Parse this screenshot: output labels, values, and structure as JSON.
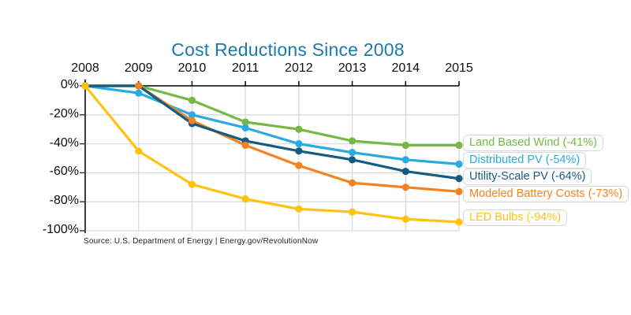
{
  "chart_data": {
    "type": "line",
    "title": "Cost Reductions Since 2008",
    "categories": [
      "2008",
      "2009",
      "2010",
      "2011",
      "2012",
      "2013",
      "2014",
      "2015"
    ],
    "y_tick_labels": [
      "0%",
      "-20%",
      "-40%",
      "-60%",
      "-80%",
      "-100%"
    ],
    "y_tick_values": [
      0,
      -20,
      -40,
      -60,
      -80,
      -100
    ],
    "ylim": [
      -100,
      0
    ],
    "grid": true,
    "legend_position": "right",
    "x_axis_position": "top",
    "series": [
      {
        "name": "Land Based Wind",
        "legend_label": "Land Based Wind (-41%)",
        "color": "#76B843",
        "values": [
          0,
          0,
          -10,
          -25,
          -30,
          -38,
          -41,
          -41
        ]
      },
      {
        "name": "Distributed PV",
        "legend_label": "Distributed PV (-54%)",
        "color": "#29ABE2",
        "values": [
          0,
          -5,
          -20,
          -29,
          -40,
          -46,
          -51,
          -54
        ]
      },
      {
        "name": "Utility-Scale PV",
        "legend_label": "Utility-Scale PV (-64%)",
        "color": "#155C80",
        "values": [
          0,
          0,
          -26,
          -38,
          -45,
          -51,
          -59,
          -64
        ]
      },
      {
        "name": "Modeled Battery Costs",
        "legend_label": "Modeled Battery Costs (-73%)",
        "color": "#F58220",
        "values": [
          0,
          0,
          -24,
          -41,
          -55,
          -67,
          -70,
          -73
        ]
      },
      {
        "name": "LED Bulbs",
        "legend_label": "LED Bulbs (-94%)",
        "color": "#FFC20E",
        "values": [
          0,
          -45,
          -68,
          -78,
          -85,
          -87,
          -92,
          -94
        ]
      }
    ],
    "source": "Source: U.S. Department of Energy | Energy.gov/RevolutionNow"
  },
  "colors": {
    "title": "#1B7AA6",
    "grid": "#DADADA",
    "top_axis": "#000000",
    "left_axis": "#3C3C3C",
    "legend_border": "#D8D8D8",
    "source_text": "#231F20"
  }
}
